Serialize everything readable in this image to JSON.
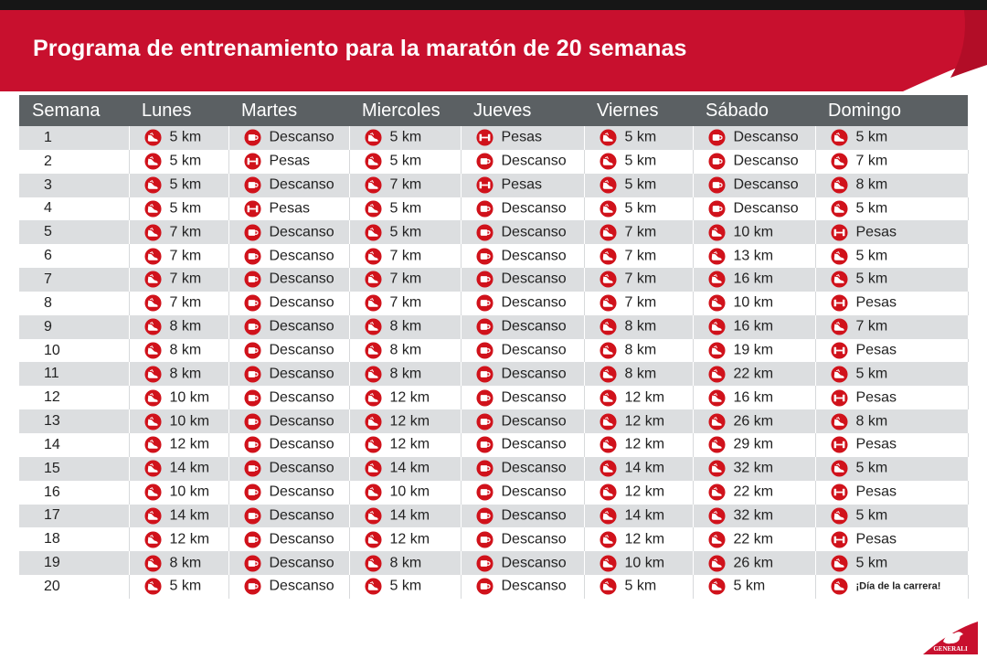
{
  "title": "Programa de entrenamiento para la maratón de 20 semanas",
  "brand": {
    "logo_text": "GENERALI",
    "color": "#c8102e"
  },
  "colors": {
    "header_bg": "#5b6063",
    "row_alt": "#dcdee0",
    "icon_red": "#d0121b"
  },
  "icons": {
    "run": "shoe-icon",
    "rest": "cup-icon",
    "weights": "dumbbell-icon"
  },
  "columns": [
    "Semana",
    "Lunes",
    "Martes",
    "Miercoles",
    "Jueves",
    "Viernes",
    "Sábado",
    "Domingo"
  ],
  "rows": [
    {
      "week": "1",
      "days": [
        [
          "run",
          "5 km"
        ],
        [
          "rest",
          "Descanso"
        ],
        [
          "run",
          "5 km"
        ],
        [
          "weights",
          "Pesas"
        ],
        [
          "run",
          "5 km"
        ],
        [
          "rest",
          "Descanso"
        ],
        [
          "run",
          "5 km"
        ]
      ]
    },
    {
      "week": "2",
      "days": [
        [
          "run",
          "5 km"
        ],
        [
          "weights",
          "Pesas"
        ],
        [
          "run",
          "5 km"
        ],
        [
          "rest",
          "Descanso"
        ],
        [
          "run",
          "5 km"
        ],
        [
          "rest",
          "Descanso"
        ],
        [
          "run",
          "7 km"
        ]
      ]
    },
    {
      "week": "3",
      "days": [
        [
          "run",
          "5 km"
        ],
        [
          "rest",
          "Descanso"
        ],
        [
          "run",
          "7 km"
        ],
        [
          "weights",
          "Pesas"
        ],
        [
          "run",
          "5 km"
        ],
        [
          "rest",
          "Descanso"
        ],
        [
          "run",
          "8 km"
        ]
      ]
    },
    {
      "week": "4",
      "days": [
        [
          "run",
          "5 km"
        ],
        [
          "weights",
          "Pesas"
        ],
        [
          "run",
          "5 km"
        ],
        [
          "rest",
          "Descanso"
        ],
        [
          "run",
          "5 km"
        ],
        [
          "rest",
          "Descanso"
        ],
        [
          "run",
          "5 km"
        ]
      ]
    },
    {
      "week": "5",
      "days": [
        [
          "run",
          "7 km"
        ],
        [
          "rest",
          "Descanso"
        ],
        [
          "run",
          "5 km"
        ],
        [
          "rest",
          "Descanso"
        ],
        [
          "run",
          "7 km"
        ],
        [
          "run",
          "10 km"
        ],
        [
          "weights",
          "Pesas"
        ]
      ]
    },
    {
      "week": "6",
      "days": [
        [
          "run",
          "7 km"
        ],
        [
          "rest",
          "Descanso"
        ],
        [
          "run",
          "7 km"
        ],
        [
          "rest",
          "Descanso"
        ],
        [
          "run",
          "7 km"
        ],
        [
          "run",
          "13 km"
        ],
        [
          "run",
          "5 km"
        ]
      ]
    },
    {
      "week": "7",
      "days": [
        [
          "run",
          "7 km"
        ],
        [
          "rest",
          "Descanso"
        ],
        [
          "run",
          "7 km"
        ],
        [
          "rest",
          "Descanso"
        ],
        [
          "run",
          "7 km"
        ],
        [
          "run",
          "16 km"
        ],
        [
          "run",
          "5 km"
        ]
      ]
    },
    {
      "week": "8",
      "days": [
        [
          "run",
          "7 km"
        ],
        [
          "rest",
          "Descanso"
        ],
        [
          "run",
          "7 km"
        ],
        [
          "rest",
          "Descanso"
        ],
        [
          "run",
          "7 km"
        ],
        [
          "run",
          "10 km"
        ],
        [
          "weights",
          "Pesas"
        ]
      ]
    },
    {
      "week": "9",
      "days": [
        [
          "run",
          "8 km"
        ],
        [
          "rest",
          "Descanso"
        ],
        [
          "run",
          "8 km"
        ],
        [
          "rest",
          "Descanso"
        ],
        [
          "run",
          "8 km"
        ],
        [
          "run",
          "16 km"
        ],
        [
          "run",
          "7 km"
        ]
      ]
    },
    {
      "week": "10",
      "days": [
        [
          "run",
          "8 km"
        ],
        [
          "rest",
          "Descanso"
        ],
        [
          "run",
          "8 km"
        ],
        [
          "rest",
          "Descanso"
        ],
        [
          "run",
          "8 km"
        ],
        [
          "run",
          "19 km"
        ],
        [
          "weights",
          "Pesas"
        ]
      ]
    },
    {
      "week": "11",
      "days": [
        [
          "run",
          "8 km"
        ],
        [
          "rest",
          "Descanso"
        ],
        [
          "run",
          "8 km"
        ],
        [
          "rest",
          "Descanso"
        ],
        [
          "run",
          "8 km"
        ],
        [
          "run",
          "22 km"
        ],
        [
          "run",
          "5 km"
        ]
      ]
    },
    {
      "week": "12",
      "days": [
        [
          "run",
          "10 km"
        ],
        [
          "rest",
          "Descanso"
        ],
        [
          "run",
          "12 km"
        ],
        [
          "rest",
          "Descanso"
        ],
        [
          "run",
          "12 km"
        ],
        [
          "run",
          "16 km"
        ],
        [
          "weights",
          "Pesas"
        ]
      ]
    },
    {
      "week": "13",
      "days": [
        [
          "run",
          "10 km"
        ],
        [
          "rest",
          "Descanso"
        ],
        [
          "run",
          "12 km"
        ],
        [
          "rest",
          "Descanso"
        ],
        [
          "run",
          "12 km"
        ],
        [
          "run",
          "26 km"
        ],
        [
          "run",
          "8 km"
        ]
      ]
    },
    {
      "week": "14",
      "days": [
        [
          "run",
          "12 km"
        ],
        [
          "rest",
          "Descanso"
        ],
        [
          "run",
          "12 km"
        ],
        [
          "rest",
          "Descanso"
        ],
        [
          "run",
          "12 km"
        ],
        [
          "run",
          "29 km"
        ],
        [
          "weights",
          "Pesas"
        ]
      ]
    },
    {
      "week": "15",
      "days": [
        [
          "run",
          "14 km"
        ],
        [
          "rest",
          "Descanso"
        ],
        [
          "run",
          "14 km"
        ],
        [
          "rest",
          "Descanso"
        ],
        [
          "run",
          "14 km"
        ],
        [
          "run",
          "32 km"
        ],
        [
          "run",
          "5 km"
        ]
      ]
    },
    {
      "week": "16",
      "days": [
        [
          "run",
          "10 km"
        ],
        [
          "rest",
          "Descanso"
        ],
        [
          "run",
          "10 km"
        ],
        [
          "rest",
          "Descanso"
        ],
        [
          "run",
          "12 km"
        ],
        [
          "run",
          "22 km"
        ],
        [
          "weights",
          "Pesas"
        ]
      ]
    },
    {
      "week": "17",
      "days": [
        [
          "run",
          "14 km"
        ],
        [
          "rest",
          "Descanso"
        ],
        [
          "run",
          "14 km"
        ],
        [
          "rest",
          "Descanso"
        ],
        [
          "run",
          "14 km"
        ],
        [
          "run",
          "32 km"
        ],
        [
          "run",
          "5 km"
        ]
      ]
    },
    {
      "week": "18",
      "days": [
        [
          "run",
          "12 km"
        ],
        [
          "rest",
          "Descanso"
        ],
        [
          "run",
          "12 km"
        ],
        [
          "rest",
          "Descanso"
        ],
        [
          "run",
          "12 km"
        ],
        [
          "run",
          "22 km"
        ],
        [
          "weights",
          "Pesas"
        ]
      ]
    },
    {
      "week": "19",
      "days": [
        [
          "run",
          "8 km"
        ],
        [
          "rest",
          "Descanso"
        ],
        [
          "run",
          "8 km"
        ],
        [
          "rest",
          "Descanso"
        ],
        [
          "run",
          "10 km"
        ],
        [
          "run",
          "26 km"
        ],
        [
          "run",
          "5 km"
        ]
      ]
    },
    {
      "week": "20",
      "days": [
        [
          "run",
          "5 km"
        ],
        [
          "rest",
          "Descanso"
        ],
        [
          "run",
          "5 km"
        ],
        [
          "rest",
          "Descanso"
        ],
        [
          "run",
          "5 km"
        ],
        [
          "run",
          "5 km"
        ],
        [
          "run",
          "¡Día de la carrera!"
        ]
      ]
    }
  ]
}
